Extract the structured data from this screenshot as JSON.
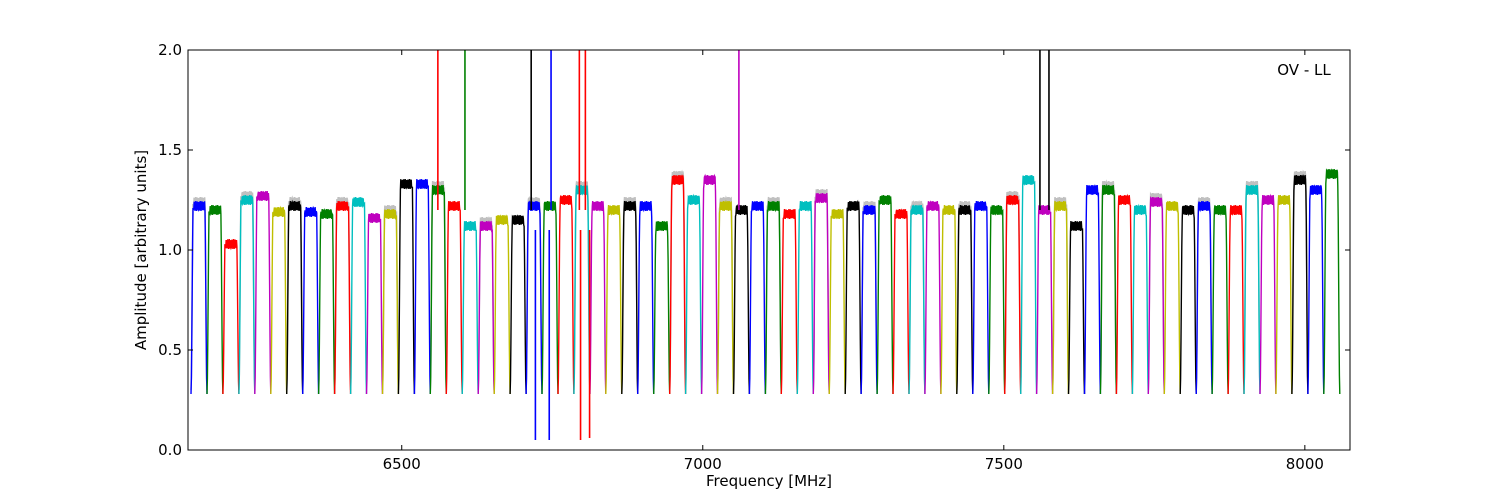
{
  "chart_data": {
    "type": "line",
    "title": "",
    "annotation": "OV - LL",
    "xlabel": "Frequency [MHz]",
    "ylabel": "Amplitude [arbitrary units]",
    "xlim": [
      6145,
      8075
    ],
    "ylim": [
      0.0,
      2.0
    ],
    "xticks": [
      6500,
      7000,
      7500,
      8000
    ],
    "xtick_labels": [
      "6500",
      "7000",
      "7500",
      "8000"
    ],
    "yticks": [
      0.0,
      0.5,
      1.0,
      1.5,
      2.0
    ],
    "ytick_labels": [
      "0.0",
      "0.5",
      "1.0",
      "1.5",
      "2.0"
    ],
    "grid": false,
    "legend": "none",
    "color_cycle": [
      "#0000ff",
      "#008000",
      "#ff0000",
      "#00bfbf",
      "#bf00bf",
      "#bfbf00",
      "#000000"
    ],
    "background_trace_color": "#c0c0c0",
    "channel_width_mhz": 26.5,
    "channel_start_mhz": 6150,
    "channel_plateau": [
      1.22,
      1.2,
      1.03,
      1.25,
      1.27,
      1.19,
      1.22,
      1.19,
      1.18,
      1.22,
      1.24,
      1.16,
      1.18,
      1.33,
      1.33,
      1.3,
      1.22,
      1.12,
      1.12,
      1.15,
      1.15,
      1.22,
      1.22,
      1.25,
      1.3,
      1.22,
      1.2,
      1.22,
      1.22,
      1.12,
      1.35,
      1.25,
      1.35,
      1.22,
      1.2,
      1.22,
      1.22,
      1.18,
      1.22,
      1.26,
      1.18,
      1.22,
      1.2,
      1.25,
      1.18,
      1.2,
      1.22,
      1.2,
      1.2,
      1.22,
      1.2,
      1.25,
      1.35,
      1.2,
      1.22,
      1.12,
      1.3,
      1.3,
      1.25,
      1.2,
      1.24,
      1.22,
      1.2,
      1.22,
      1.2,
      1.2,
      1.3,
      1.25,
      1.25,
      1.35,
      1.3,
      1.38
    ],
    "channel_floor": 0.28,
    "spikes": [
      {
        "x": 6560,
        "y": 2.0,
        "color": "#ff0000"
      },
      {
        "x": 6605,
        "y": 2.0,
        "color": "#008000"
      },
      {
        "x": 6715,
        "y": 2.0,
        "color": "#000000"
      },
      {
        "x": 6748,
        "y": 2.0,
        "color": "#0000ff"
      },
      {
        "x": 6795,
        "y": 2.0,
        "color": "#ff0000"
      },
      {
        "x": 6805,
        "y": 2.0,
        "color": "#ff0000"
      },
      {
        "x": 7060,
        "y": 2.0,
        "color": "#bf00bf"
      },
      {
        "x": 7560,
        "y": 2.0,
        "color": "#000000"
      },
      {
        "x": 7575,
        "y": 2.0,
        "color": "#000000"
      }
    ],
    "deep_dips": [
      {
        "x": 6722,
        "y": 0.05,
        "color": "#0000ff"
      },
      {
        "x": 6745,
        "y": 0.05,
        "color": "#0000ff"
      },
      {
        "x": 6797,
        "y": 0.05,
        "color": "#ff0000"
      },
      {
        "x": 6812,
        "y": 0.06,
        "color": "#ff0000"
      }
    ]
  }
}
